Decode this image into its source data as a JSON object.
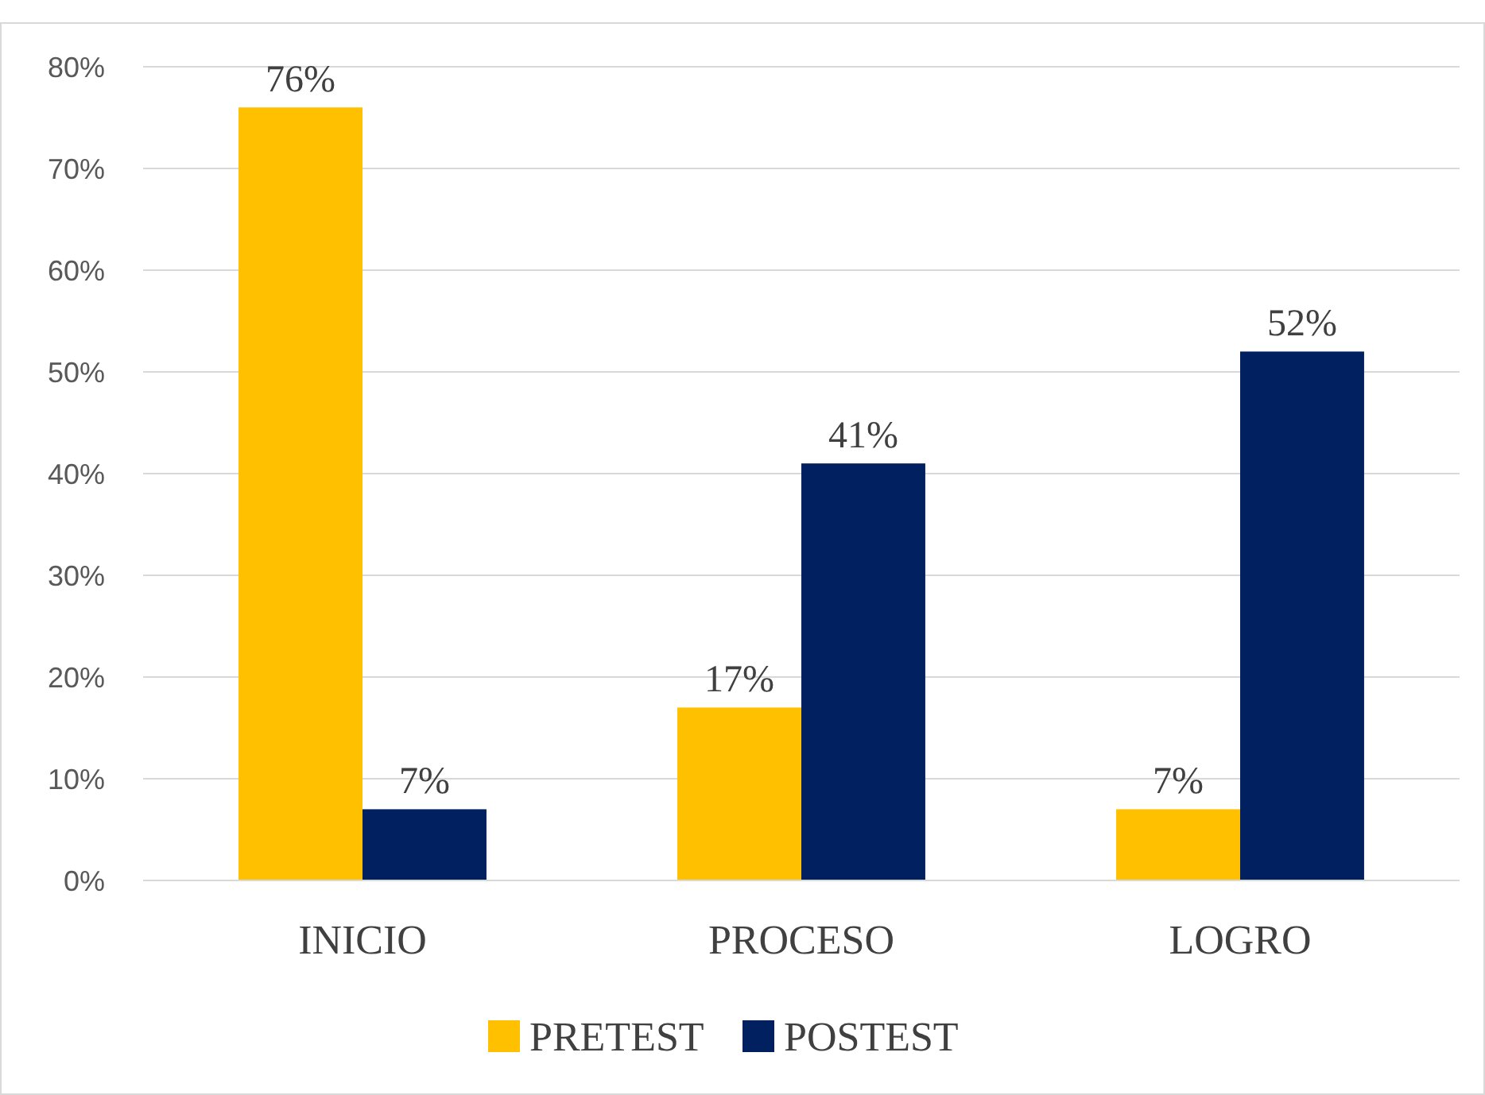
{
  "chart_data": {
    "type": "bar",
    "categories": [
      "INICIO",
      "PROCESO",
      "LOGRO"
    ],
    "series": [
      {
        "name": "PRETEST",
        "color": "#ffc000",
        "values": [
          76,
          17,
          7
        ],
        "value_labels": [
          "76%",
          "17%",
          "7%"
        ]
      },
      {
        "name": "POSTEST",
        "color": "#002060",
        "values": [
          7,
          41,
          52
        ],
        "value_labels": [
          "7%",
          "41%",
          "52%"
        ]
      }
    ],
    "ylim": [
      0,
      80
    ],
    "yticks": [
      {
        "value": 0,
        "label": "0%"
      },
      {
        "value": 10,
        "label": "10%"
      },
      {
        "value": 20,
        "label": "20%"
      },
      {
        "value": 30,
        "label": "30%"
      },
      {
        "value": 40,
        "label": "40%"
      },
      {
        "value": 50,
        "label": "50%"
      },
      {
        "value": 60,
        "label": "60%"
      },
      {
        "value": 70,
        "label": "70%"
      },
      {
        "value": 80,
        "label": "80%"
      }
    ],
    "grid": "y",
    "legend": "bottom"
  }
}
